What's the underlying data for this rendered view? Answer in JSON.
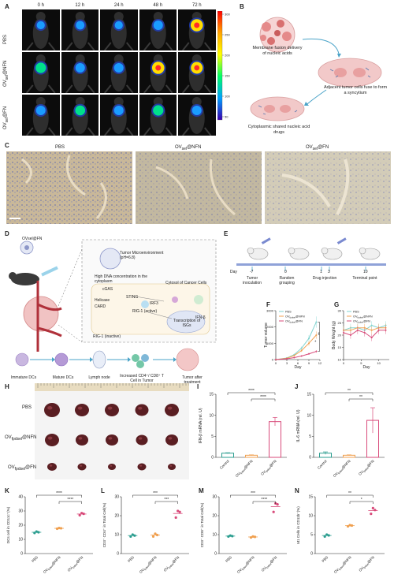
{
  "panels": {
    "A": {
      "label": "A",
      "timepoints": [
        "0 h",
        "12 h",
        "24 h",
        "48 h",
        "72 h"
      ],
      "rows": [
        "PBS",
        "OV_sel@NFN",
        "OV_sel@FN"
      ],
      "row_display": [
        [
          "PBS",
          ""
        ],
        [
          "OV",
          "@NFN"
        ],
        [
          "OV",
          "@FN"
        ]
      ],
      "row_sub": [
        "",
        "sel",
        "sel"
      ],
      "colorbar_ticks": [
        "300",
        "250",
        "200",
        "150",
        "100",
        "50"
      ]
    },
    "B": {
      "label": "B",
      "text1": "Membrane fusion delivery of nucleic acids",
      "text2": "Adjacent tumor cells fuse to form a syncytium",
      "text3": "Cytoplasmic shared nucleic acid drugs"
    },
    "C": {
      "label": "C",
      "titles": [
        "PBS",
        "OV",
        "OV"
      ],
      "title_subs": [
        "",
        "sel",
        "sel"
      ],
      "title_tails": [
        "",
        "@NFN",
        "@FN"
      ]
    },
    "D": {
      "label": "D",
      "vector": "OVsel@FN",
      "box_title": "Tumor Microenvironment (pH=6.8)",
      "box_text1": "High DNA concentration in the cytoplasm",
      "box_text2": "Cytosol of Cancer Cells",
      "box_labels": [
        "cGAS",
        "STING",
        "IRF3",
        "IFN-β"
      ],
      "transcription": "Transcription of ISGs",
      "rig": "RIG-1 (inactive)",
      "rig_active": "RIG-1 (active)",
      "helicase": "Helicase",
      "card": "CARD",
      "flow": [
        "Immature DCs",
        "Mature DCs",
        "Lymph node",
        "Increased CD4⁺/ CD8⁺ T Cell in Tumor",
        "Tumor after treatment"
      ]
    },
    "E": {
      "label": "E",
      "days": [
        "Day",
        "-7",
        "0",
        "1",
        "3",
        "10"
      ],
      "events": [
        "Tumor inoculation",
        "Random grouping",
        "Drug injection",
        "Terminal point"
      ]
    },
    "F": {
      "label": "F",
      "ylabel": "Tumor volume",
      "xlabel": "Day",
      "legend": [
        "PBS",
        "OV_fpdsel@NFN",
        "OV_fpdsel@FN"
      ],
      "xticks": [
        "0",
        "3",
        "6",
        "9",
        "12"
      ],
      "yticks": [
        "3000",
        "2000",
        "1000",
        "0"
      ],
      "sig": [
        "**",
        "*"
      ]
    },
    "G": {
      "label": "G",
      "ylabel": "Body Weight (g)",
      "xlabel": "Day",
      "legend": [
        "PBS",
        "OV_fpdsel@NFN",
        "OV_fpdsel@FN"
      ],
      "xticks": [
        "0",
        "5",
        "10"
      ],
      "yticks": [
        "30",
        "25",
        "20",
        "15",
        "10"
      ]
    },
    "H": {
      "label": "H",
      "rows": [
        "PBS",
        "OV_fpdsel@NFN",
        "OV_fpdsel@FN"
      ]
    },
    "I": {
      "label": "I",
      "ylabel": "IFN-β mRNA (rel. U)",
      "sig": [
        "****",
        "****"
      ]
    },
    "J": {
      "label": "J",
      "ylabel": "IL-6 mRNA (rel. U)",
      "sig": [
        "**",
        "**"
      ]
    },
    "K": {
      "label": "K",
      "ylabel": "DCs cell in CD11c⁺(%)",
      "sig": [
        "****",
        "****"
      ]
    },
    "L": {
      "label": "L",
      "ylabel": "CD3⁺ CD4⁺ in Total Cell(%)",
      "sig": [
        "***",
        "***"
      ]
    },
    "M": {
      "label": "M",
      "ylabel": "CD3⁺ CD8⁺ in Total Cell(%)",
      "sig": [
        "***",
        "****"
      ]
    },
    "N": {
      "label": "N",
      "ylabel": "M1 Cells in CD11b⁺(%)",
      "sig": [
        "**",
        "*"
      ]
    }
  },
  "chart_data": [
    {
      "panel": "F",
      "type": "line",
      "x": [
        0,
        3,
        5,
        7,
        9,
        11
      ],
      "series": [
        {
          "name": "PBS",
          "color": "#7fd3cf",
          "values": [
            0,
            100,
            300,
            700,
            1300,
            2300
          ]
        },
        {
          "name": "OV_fpdsel@NFN",
          "color": "#f0a050",
          "values": [
            0,
            80,
            250,
            550,
            1000,
            1500
          ]
        },
        {
          "name": "OV_fpdsel@FN",
          "color": "#d84a7a",
          "values": [
            0,
            50,
            120,
            220,
            350,
            500
          ]
        }
      ],
      "xlabel": "Day",
      "ylabel": "Tumor volume",
      "ylim": [
        0,
        3000
      ],
      "xlim": [
        0,
        12
      ]
    },
    {
      "panel": "G",
      "type": "line",
      "x": [
        0,
        2,
        4,
        6,
        8,
        10,
        12
      ],
      "series": [
        {
          "name": "PBS",
          "color": "#7fd3cf",
          "values": [
            22,
            23,
            23,
            22,
            24,
            23,
            24
          ]
        },
        {
          "name": "OV_fpdsel@NFN",
          "color": "#f0a050",
          "values": [
            22,
            22,
            23,
            23,
            22,
            23,
            23
          ]
        },
        {
          "name": "OV_fpdsel@FN",
          "color": "#d84a7a",
          "values": [
            21,
            20,
            22,
            21,
            19,
            22,
            22
          ]
        }
      ],
      "xlabel": "Day",
      "ylabel": "Body Weight (g)",
      "ylim": [
        10,
        30
      ],
      "xlim": [
        0,
        13
      ]
    },
    {
      "panel": "I",
      "type": "bar",
      "categories": [
        "Control",
        "OV_fpdsel@NFN",
        "OV_fpdsel@FN"
      ],
      "values": [
        1.0,
        0.5,
        8.5
      ],
      "errors": [
        0.1,
        0.1,
        1.0
      ],
      "colors": [
        "#2a9d8f",
        "#f0a050",
        "#d84a7a"
      ],
      "ylabel": "IFN-β mRNA (rel. U)",
      "ylim": [
        0,
        15
      ],
      "yticks": [
        0,
        5,
        10,
        15
      ]
    },
    {
      "panel": "J",
      "type": "bar",
      "categories": [
        "Control",
        "OV_fpdsel@NFN",
        "OV_fpdsel@FN"
      ],
      "values": [
        1.0,
        0.5,
        8.8
      ],
      "errors": [
        0.3,
        0.1,
        3.0
      ],
      "colors": [
        "#2a9d8f",
        "#f0a050",
        "#d84a7a"
      ],
      "ylabel": "IL-6 mRNA (rel. U)",
      "ylim": [
        0,
        15
      ],
      "yticks": [
        0,
        5,
        10,
        15
      ]
    },
    {
      "panel": "K",
      "type": "scatter",
      "categories": [
        "PBS",
        "OV_fpdsel@NFN",
        "OV_fpdsel@FN"
      ],
      "points": [
        [
          14.5,
          15.5,
          15.0
        ],
        [
          17.5,
          18.0,
          17.8
        ],
        [
          27.0,
          28.5,
          28.0
        ]
      ],
      "colors": [
        "#2a9d8f",
        "#f0a050",
        "#d84a7a"
      ],
      "ylabel": "DCs cell in CD11c⁺(%)",
      "ylim": [
        0,
        40
      ],
      "yticks": [
        0,
        10,
        20,
        30,
        40
      ]
    },
    {
      "panel": "L",
      "type": "scatter",
      "categories": [
        "PBS",
        "OV_fpdsel@NFN",
        "OV_fpdsel@FN"
      ],
      "points": [
        [
          9.0,
          10.0,
          9.5
        ],
        [
          9.0,
          10.5,
          9.8
        ],
        [
          19.0,
          22.5,
          22.0
        ]
      ],
      "colors": [
        "#2a9d8f",
        "#f0a050",
        "#d84a7a"
      ],
      "ylabel": "CD3⁺ CD4⁺ in Total Cell(%)",
      "ylim": [
        0,
        30
      ],
      "yticks": [
        0,
        10,
        20,
        30
      ]
    },
    {
      "panel": "M",
      "type": "scatter",
      "categories": [
        "PBS",
        "OV_fpdsel@NFN",
        "OV_fpdsel@FN"
      ],
      "points": [
        [
          9.0,
          9.5,
          9.2
        ],
        [
          8.5,
          9.0,
          8.8
        ],
        [
          22.0,
          26.5,
          26.0
        ]
      ],
      "colors": [
        "#2a9d8f",
        "#f0a050",
        "#d84a7a"
      ],
      "ylabel": "CD3⁺ CD8⁺ in Total Cell(%)",
      "ylim": [
        0,
        30
      ],
      "yticks": [
        0,
        10,
        20,
        30
      ]
    },
    {
      "panel": "N",
      "type": "scatter",
      "categories": [
        "PBS",
        "OV_fpdsel@NFN",
        "OV_fpdsel@FN"
      ],
      "points": [
        [
          4.5,
          5.0,
          4.8
        ],
        [
          7.2,
          7.5,
          7.4
        ],
        [
          10.5,
          12.0,
          11.5
        ]
      ],
      "colors": [
        "#2a9d8f",
        "#f0a050",
        "#d84a7a"
      ],
      "ylabel": "M1 Cells in CD11b⁺(%)",
      "ylim": [
        0,
        15
      ],
      "yticks": [
        0,
        5,
        10,
        15
      ]
    }
  ]
}
